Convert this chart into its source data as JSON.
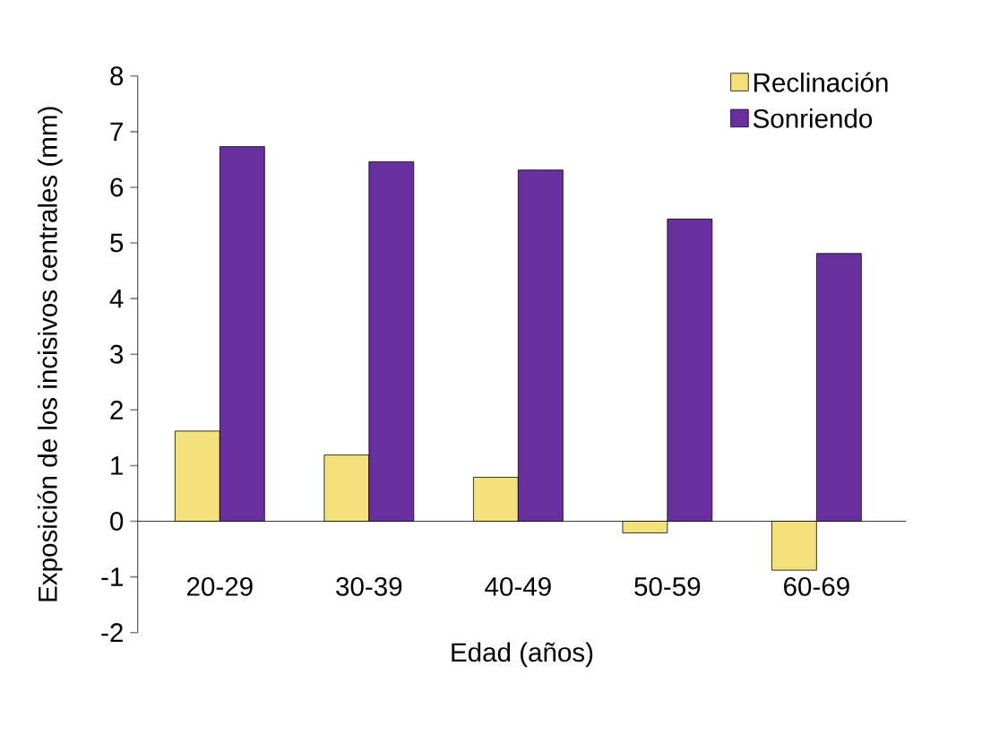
{
  "chart_data": {
    "type": "bar",
    "xlabel": "Edad (años)",
    "ylabel": "Exposición de los incisivos centrales (mm)",
    "categories": [
      "20-29",
      "30-39",
      "40-49",
      "50-59",
      "60-69"
    ],
    "series": [
      {
        "name": "Reclinación",
        "color": "#f3e27c",
        "values": [
          1.62,
          1.19,
          0.79,
          -0.21,
          -0.88
        ]
      },
      {
        "name": "Sonriendo",
        "color": "#6a2f9e",
        "values": [
          6.73,
          6.46,
          6.31,
          5.43,
          4.81
        ]
      }
    ],
    "ylim": [
      -2,
      8
    ],
    "yticks": [
      -2,
      -1,
      0,
      1,
      2,
      3,
      4,
      5,
      6,
      7,
      8
    ],
    "legend": "top right",
    "grid": false
  }
}
